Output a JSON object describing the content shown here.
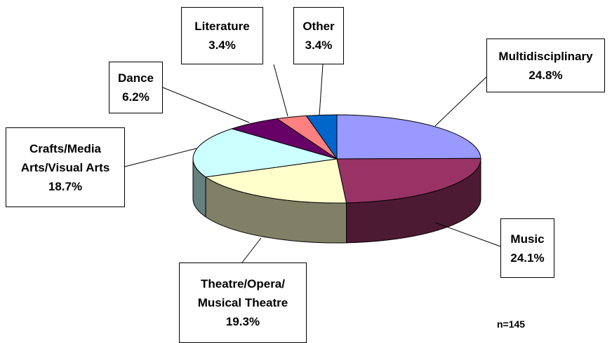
{
  "chart_data": {
    "type": "pie3d",
    "categories": [
      "Multidisciplinary",
      "Music",
      "Theatre/Opera/\nMusical Theatre",
      "Crafts/Media\nArts/Visual Arts",
      "Dance",
      "Literature",
      "Other"
    ],
    "values": [
      24.8,
      24.1,
      19.3,
      18.7,
      6.2,
      3.4,
      3.4
    ],
    "value_labels": [
      "24.8%",
      "24.1%",
      "19.3%",
      "18.7%",
      "6.2%",
      "3.4%",
      "3.4%"
    ],
    "colors": [
      "#9999ff",
      "#993366",
      "#ffffcc",
      "#ccffff",
      "#660066",
      "#ff8080",
      "#0066cc"
    ],
    "annotation": "n=145"
  }
}
